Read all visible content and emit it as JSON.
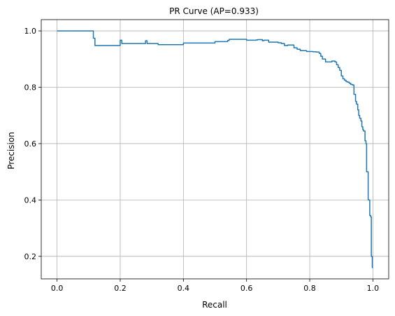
{
  "chart_data": {
    "type": "line",
    "title": "PR Curve (AP=0.933)",
    "xlabel": "Recall",
    "ylabel": "Precision",
    "xlim": [
      -0.05,
      1.05
    ],
    "ylim": [
      0.12,
      1.04
    ],
    "x_ticks": [
      0.0,
      0.2,
      0.4,
      0.6,
      0.8,
      1.0
    ],
    "x_tick_labels": [
      "0.0",
      "0.2",
      "0.4",
      "0.6",
      "0.8",
      "1.0"
    ],
    "y_ticks": [
      0.2,
      0.4,
      0.6,
      0.8,
      1.0
    ],
    "y_tick_labels": [
      "0.2",
      "0.4",
      "0.6",
      "0.8",
      "1.0"
    ],
    "grid": true,
    "legend": "none",
    "series_color": "#1f77b4",
    "series": [
      {
        "step": "post",
        "x": [
          0.0,
          0.11,
          0.115,
          0.12,
          0.2,
          0.205,
          0.28,
          0.285,
          0.32,
          0.4,
          0.5,
          0.54,
          0.545,
          0.6,
          0.63,
          0.635,
          0.65,
          0.655,
          0.67,
          0.68,
          0.7,
          0.71,
          0.72,
          0.73,
          0.75,
          0.76,
          0.77,
          0.78,
          0.79,
          0.8,
          0.81,
          0.82,
          0.83,
          0.835,
          0.84,
          0.85,
          0.86,
          0.87,
          0.88,
          0.885,
          0.89,
          0.895,
          0.9,
          0.905,
          0.91,
          0.915,
          0.92,
          0.925,
          0.93,
          0.935,
          0.94,
          0.945,
          0.948,
          0.952,
          0.955,
          0.958,
          0.962,
          0.965,
          0.968,
          0.97,
          0.975,
          0.978,
          0.98,
          0.985,
          0.99,
          0.993,
          0.995,
          0.998,
          1.0
        ],
        "y": [
          1.0,
          1.0,
          0.974,
          0.948,
          0.967,
          0.955,
          0.965,
          0.955,
          0.951,
          0.957,
          0.962,
          0.966,
          0.97,
          0.967,
          0.968,
          0.969,
          0.965,
          0.967,
          0.96,
          0.96,
          0.958,
          0.955,
          0.948,
          0.95,
          0.94,
          0.935,
          0.93,
          0.93,
          0.927,
          0.927,
          0.926,
          0.925,
          0.92,
          0.91,
          0.9,
          0.89,
          0.89,
          0.893,
          0.89,
          0.88,
          0.87,
          0.86,
          0.84,
          0.83,
          0.825,
          0.82,
          0.818,
          0.814,
          0.81,
          0.808,
          0.775,
          0.75,
          0.74,
          0.72,
          0.7,
          0.69,
          0.68,
          0.66,
          0.65,
          0.645,
          0.61,
          0.6,
          0.5,
          0.4,
          0.345,
          0.34,
          0.2,
          0.16,
          0.16
        ]
      }
    ]
  }
}
